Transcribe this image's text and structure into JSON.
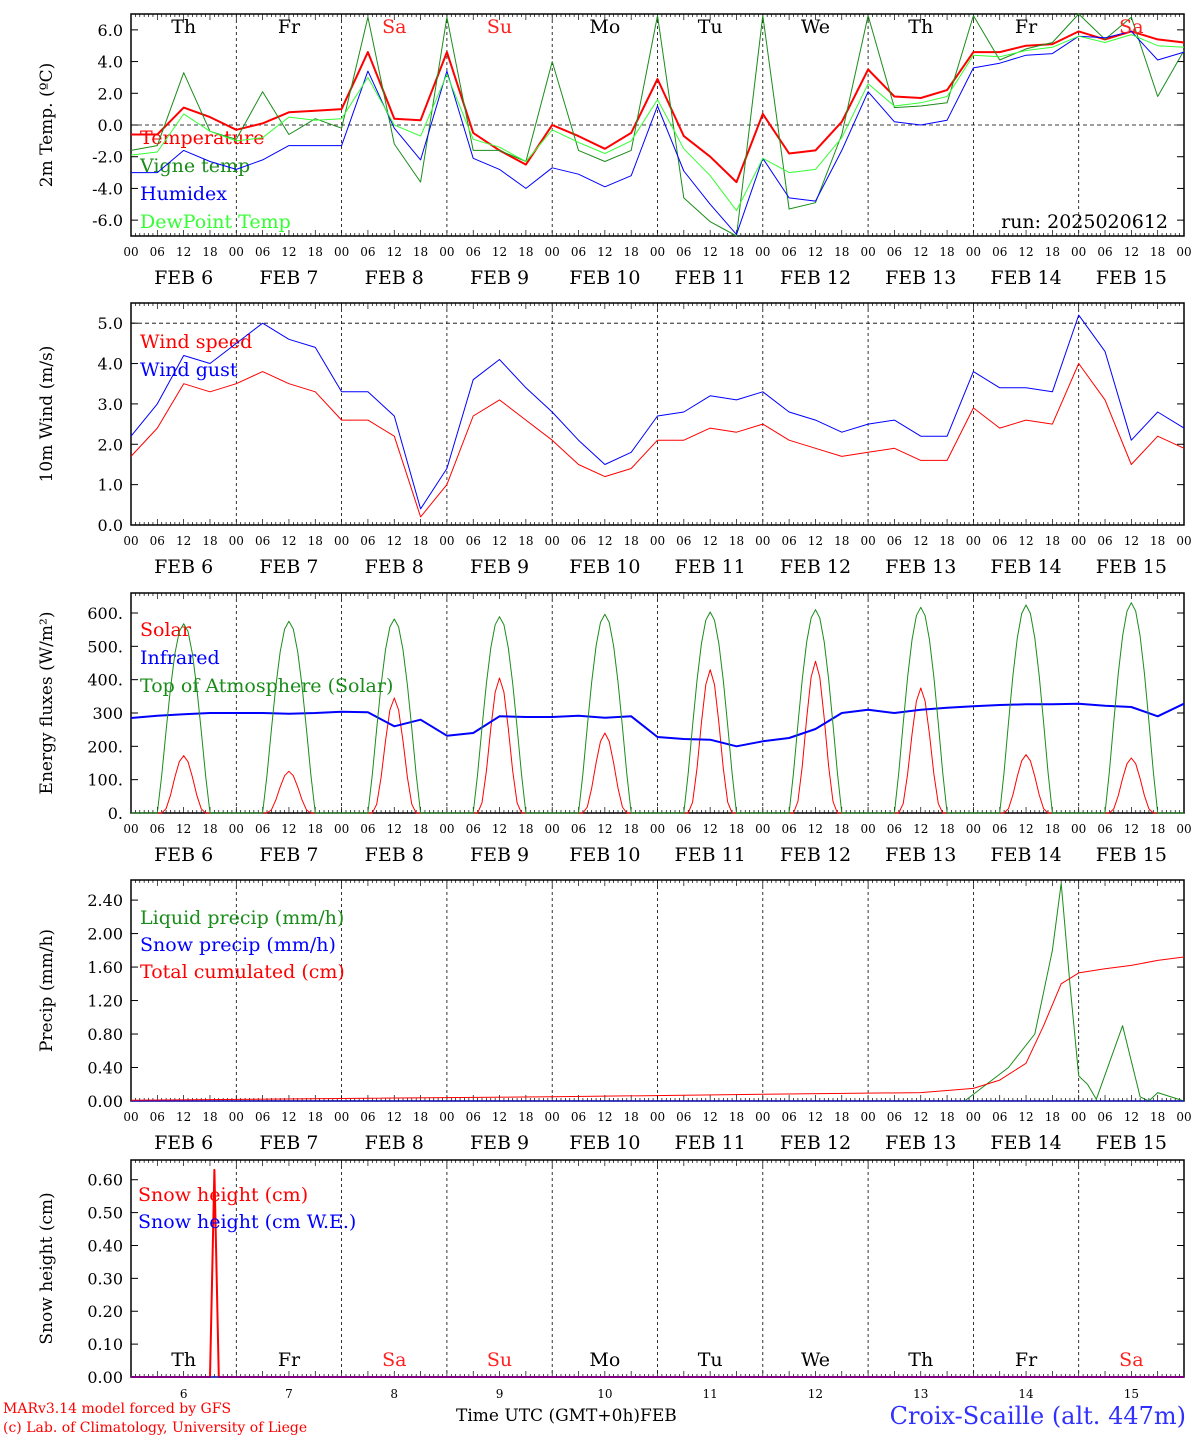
{
  "footer": {
    "model": "MARv3.14 model forced by GFS",
    "credit": "(c) Lab. of Climatology, University of Liege",
    "time_label": "Time UTC (GMT+0h)",
    "month": "FEB",
    "station": "Croix-Scaille (alt. 447m)"
  },
  "days": {
    "weekdays": [
      "Th",
      "Fr",
      "Sa",
      "Su",
      "Mo",
      "Tu",
      "We",
      "Th",
      "Fr",
      "Sa"
    ],
    "weekend_flags": [
      false,
      false,
      true,
      true,
      false,
      false,
      false,
      false,
      false,
      true
    ],
    "dates": [
      "FEB  6",
      "FEB  7",
      "FEB  8",
      "FEB  9",
      "FEB 10",
      "FEB 11",
      "FEB 12",
      "FEB 13",
      "FEB 14",
      "FEB 15"
    ],
    "day_numbers": [
      "6",
      "7",
      "8",
      "9",
      "10",
      "11",
      "12",
      "13",
      "14",
      "15"
    ],
    "hour_ticks": [
      "00",
      "06",
      "12",
      "18"
    ],
    "final_tick": "00"
  },
  "colors": {
    "red": "#ff0000",
    "green": "#1a8c1a",
    "blue": "#0000ff",
    "lightgreen": "#33ff33",
    "weekend": "#ff2020"
  },
  "chart_data": [
    {
      "type": "line",
      "ylabel": "2m Temp. (ºC)",
      "ylim": [
        -7,
        7
      ],
      "yticks": [
        "6.0",
        "4.0",
        "2.0",
        "0.0",
        "-2.0",
        "-4.0",
        "-6.0"
      ],
      "ytick_values": [
        6,
        4,
        2,
        0,
        -2,
        -4,
        -6
      ],
      "annotation": "run: 2025020612",
      "x_unit": "hours since FEB 6 00 UTC",
      "series": [
        {
          "name": "Temperature",
          "color": "red",
          "width": 2,
          "x": [
            0,
            6,
            12,
            18,
            24,
            30,
            36,
            42,
            48,
            54,
            60,
            66,
            72,
            78,
            84,
            90,
            96,
            102,
            108,
            114,
            120,
            126,
            132,
            138,
            144,
            150,
            156,
            162,
            168,
            174,
            180,
            186,
            192,
            198,
            204,
            210,
            216,
            222,
            228,
            234,
            240
          ],
          "values": [
            -0.6,
            -0.6,
            1.1,
            0.5,
            -0.3,
            0.1,
            0.8,
            0.9,
            1.0,
            4.6,
            0.4,
            0.3,
            4.6,
            -0.5,
            -1.6,
            -2.5,
            0.0,
            -0.7,
            -1.5,
            -0.5,
            2.9,
            -0.7,
            -2.0,
            -3.6,
            0.7,
            -1.8,
            -1.6,
            0.2,
            3.5,
            1.8,
            1.7,
            2.2,
            4.6,
            4.6,
            5.0,
            5.1,
            5.9,
            5.4,
            5.9,
            5.4,
            5.2
          ]
        },
        {
          "name": "Vigne temp",
          "color": "green",
          "width": 1,
          "x": [
            0,
            6,
            12,
            18,
            24,
            30,
            36,
            42,
            48,
            54,
            60,
            66,
            72,
            78,
            84,
            90,
            96,
            102,
            108,
            114,
            120,
            126,
            132,
            138,
            144,
            150,
            156,
            162,
            168,
            174,
            180,
            186,
            192,
            198,
            204,
            210,
            216,
            222,
            228,
            234,
            240
          ],
          "values": [
            -1.6,
            -1.3,
            3.3,
            -0.4,
            -0.9,
            2.1,
            -0.6,
            0.4,
            -0.2,
            6.8,
            -1.2,
            -3.6,
            6.8,
            -1.6,
            -1.6,
            -2.3,
            4.0,
            -1.6,
            -2.3,
            -1.6,
            6.9,
            -4.6,
            -6.1,
            -7.0,
            6.9,
            -5.3,
            -4.9,
            -0.6,
            6.9,
            1.1,
            1.2,
            1.4,
            6.9,
            4.1,
            4.8,
            5.2,
            7.0,
            5.4,
            6.8,
            1.8,
            4.7
          ]
        },
        {
          "name": "Humidex",
          "color": "blue",
          "width": 1,
          "x": [
            0,
            6,
            12,
            18,
            24,
            30,
            36,
            42,
            48,
            54,
            60,
            66,
            72,
            78,
            84,
            90,
            96,
            102,
            108,
            114,
            120,
            126,
            132,
            138,
            144,
            150,
            156,
            162,
            168,
            174,
            180,
            186,
            192,
            198,
            204,
            210,
            216,
            222,
            228,
            234,
            240
          ],
          "values": [
            -3.0,
            -3.0,
            -1.6,
            -2.3,
            -2.8,
            -2.2,
            -1.3,
            -1.3,
            -1.3,
            3.4,
            -0.2,
            -2.2,
            3.4,
            -2.1,
            -2.8,
            -4.0,
            -2.7,
            -3.1,
            -3.9,
            -3.2,
            1.2,
            -2.9,
            -5.0,
            -6.9,
            -2.1,
            -4.6,
            -4.8,
            -1.6,
            2.1,
            0.2,
            0.0,
            0.3,
            3.6,
            3.9,
            4.4,
            4.5,
            5.6,
            5.5,
            5.9,
            4.1,
            4.6
          ]
        },
        {
          "name": "DewPoint Temp",
          "color": "lightgreen",
          "width": 1,
          "x": [
            0,
            6,
            12,
            18,
            24,
            30,
            36,
            42,
            48,
            54,
            60,
            66,
            72,
            78,
            84,
            90,
            96,
            102,
            108,
            114,
            120,
            126,
            132,
            138,
            144,
            150,
            156,
            162,
            168,
            174,
            180,
            186,
            192,
            198,
            204,
            210,
            216,
            222,
            228,
            234,
            240
          ],
          "values": [
            -1.9,
            -1.7,
            0.7,
            -0.4,
            -1.0,
            -0.8,
            0.5,
            0.3,
            0.4,
            3.0,
            0.0,
            -0.7,
            3.2,
            -0.9,
            -1.4,
            -2.3,
            -0.3,
            -1.1,
            -1.8,
            -1.0,
            1.6,
            -1.5,
            -3.2,
            -5.4,
            -2.1,
            -3.0,
            -2.8,
            -0.8,
            2.6,
            1.2,
            1.4,
            1.8,
            4.4,
            4.3,
            4.7,
            4.9,
            5.6,
            5.2,
            5.7,
            5.0,
            4.9
          ]
        }
      ]
    },
    {
      "type": "line",
      "ylabel": "10m Wind (m/s)",
      "ylim": [
        0,
        5.5
      ],
      "yticks": [
        "5.0",
        "4.0",
        "3.0",
        "2.0",
        "1.0",
        "0.0"
      ],
      "ytick_values": [
        5,
        4,
        3,
        2,
        1,
        0
      ],
      "x_unit": "hours since FEB 6 00 UTC",
      "series": [
        {
          "name": "Wind speed",
          "color": "red",
          "width": 1,
          "x": [
            0,
            6,
            12,
            18,
            24,
            30,
            36,
            42,
            48,
            54,
            60,
            66,
            72,
            78,
            84,
            90,
            96,
            102,
            108,
            114,
            120,
            126,
            132,
            138,
            144,
            150,
            156,
            162,
            168,
            174,
            180,
            186,
            192,
            198,
            204,
            210,
            216,
            222,
            228,
            234,
            240
          ],
          "values": [
            1.7,
            2.4,
            3.5,
            3.3,
            3.5,
            3.8,
            3.5,
            3.3,
            2.6,
            2.6,
            2.2,
            0.2,
            1.0,
            2.7,
            3.1,
            2.6,
            2.1,
            1.5,
            1.2,
            1.4,
            2.1,
            2.1,
            2.4,
            2.3,
            2.5,
            2.1,
            1.9,
            1.7,
            1.8,
            1.9,
            1.6,
            1.6,
            2.9,
            2.4,
            2.6,
            2.5,
            4.0,
            3.1,
            1.5,
            2.2,
            1.9
          ]
        },
        {
          "name": "Wind gust",
          "color": "blue",
          "width": 1,
          "x": [
            0,
            6,
            12,
            18,
            24,
            30,
            36,
            42,
            48,
            54,
            60,
            66,
            72,
            78,
            84,
            90,
            96,
            102,
            108,
            114,
            120,
            126,
            132,
            138,
            144,
            150,
            156,
            162,
            168,
            174,
            180,
            186,
            192,
            198,
            204,
            210,
            216,
            222,
            228,
            234,
            240
          ],
          "values": [
            2.2,
            3.0,
            4.2,
            4.0,
            4.5,
            5.0,
            4.6,
            4.4,
            3.3,
            3.3,
            2.7,
            0.4,
            1.4,
            3.6,
            4.1,
            3.4,
            2.8,
            2.1,
            1.5,
            1.8,
            2.7,
            2.8,
            3.2,
            3.1,
            3.3,
            2.8,
            2.6,
            2.3,
            2.5,
            2.6,
            2.2,
            2.2,
            3.8,
            3.4,
            3.4,
            3.3,
            5.2,
            4.3,
            2.1,
            2.8,
            2.4
          ]
        }
      ]
    },
    {
      "type": "line",
      "ylabel": "Energy fluxes (W/m²)",
      "ylim": [
        0,
        660
      ],
      "yticks": [
        "600.",
        "500.",
        "400.",
        "300",
        "200.",
        "100.",
        "0."
      ],
      "ytick_values": [
        600,
        500,
        400,
        300,
        200,
        100,
        0
      ],
      "x_unit": "hours since FEB 6 00 UTC",
      "series": [
        {
          "name": "Solar",
          "color": "red",
          "width": 1,
          "daily_peak_hour": 12,
          "daily_peaks": [
            172,
            125,
            345,
            405,
            240,
            430,
            455,
            375,
            175,
            165
          ]
        },
        {
          "name": "Infrared",
          "color": "blue",
          "width": 2,
          "x": [
            0,
            6,
            12,
            18,
            24,
            30,
            36,
            42,
            48,
            54,
            60,
            66,
            72,
            78,
            84,
            90,
            96,
            102,
            108,
            114,
            120,
            126,
            132,
            138,
            144,
            150,
            156,
            162,
            168,
            174,
            180,
            186,
            192,
            198,
            204,
            210,
            216,
            222,
            228,
            234,
            240
          ],
          "values": [
            285,
            292,
            296,
            300,
            300,
            300,
            298,
            300,
            304,
            302,
            260,
            280,
            232,
            240,
            290,
            288,
            288,
            292,
            286,
            290,
            228,
            222,
            220,
            200,
            215,
            225,
            252,
            300,
            310,
            300,
            310,
            316,
            320,
            324,
            326,
            326,
            328,
            322,
            318,
            290,
            328
          ]
        },
        {
          "name": "Top of Atmosphere (Solar)",
          "color": "green",
          "width": 1,
          "daily_peak_hour": 12,
          "daily_peaks": [
            568,
            575,
            582,
            589,
            596,
            603,
            610,
            617,
            624,
            631
          ]
        }
      ]
    },
    {
      "type": "line",
      "ylabel": "Precip (mm/h)",
      "ylim": [
        0,
        2.64
      ],
      "yticks": [
        "2.40",
        "2.00",
        "1.60",
        "1.20",
        "0.80",
        "0.40",
        "0.00"
      ],
      "ytick_values": [
        2.4,
        2.0,
        1.6,
        1.2,
        0.8,
        0.4,
        0.0
      ],
      "x_unit": "hours since FEB 6 00 UTC",
      "series": [
        {
          "name": "Liquid precip (mm/h)",
          "color": "green",
          "width": 1,
          "x": [
            0,
            190,
            200,
            206,
            210,
            212,
            214,
            216,
            218,
            220,
            226,
            230,
            232,
            234,
            240
          ],
          "values": [
            0.0,
            0.0,
            0.4,
            0.8,
            1.8,
            2.6,
            1.4,
            0.3,
            0.2,
            0.02,
            0.9,
            0.05,
            0.0,
            0.1,
            0.0
          ]
        },
        {
          "name": "Snow precip (mm/h)",
          "color": "blue",
          "width": 1,
          "x": [
            0,
            240
          ],
          "values": [
            0.0,
            0.0
          ]
        },
        {
          "name": "Total cumulated (cm)",
          "color": "red",
          "width": 1,
          "x": [
            0,
            48,
            96,
            144,
            180,
            192,
            198,
            204,
            208,
            212,
            216,
            222,
            228,
            234,
            240
          ],
          "values": [
            0.01,
            0.03,
            0.05,
            0.08,
            0.1,
            0.15,
            0.25,
            0.45,
            0.9,
            1.4,
            1.53,
            1.58,
            1.62,
            1.68,
            1.72
          ]
        }
      ]
    },
    {
      "type": "line",
      "ylabel": "Snow height (cm)",
      "ylim": [
        0,
        0.66
      ],
      "yticks": [
        "0.60",
        "0.50",
        "0.40",
        "0.30",
        "0.20",
        "0.10",
        "0.00"
      ],
      "ytick_values": [
        0.6,
        0.5,
        0.4,
        0.3,
        0.2,
        0.1,
        0.0
      ],
      "x_unit": "hours since FEB 6 00 UTC",
      "series": [
        {
          "name": "Snow height (cm)",
          "color": "red",
          "width": 2,
          "x": [
            0,
            18,
            19,
            20,
            21,
            240
          ],
          "values": [
            0,
            0,
            0.63,
            0,
            0,
            0
          ]
        },
        {
          "name": "Snow height (cm W.E.)",
          "color": "blue",
          "width": 1,
          "x": [
            0,
            240
          ],
          "values": [
            0,
            0
          ]
        }
      ]
    }
  ]
}
